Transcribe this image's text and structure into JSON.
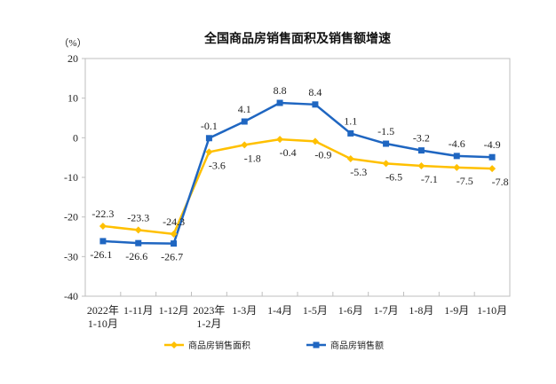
{
  "chart_data": {
    "type": "line",
    "title": "全国商品房销售面积及销售额增速",
    "ylabel": "（%）",
    "xlabel": "",
    "ylim": [
      -40,
      20
    ],
    "yticks": [
      20,
      10,
      0,
      -10,
      -20,
      -30,
      -40
    ],
    "grid": false,
    "legend_position": "bottom",
    "categories": [
      [
        "2022年",
        "1-10月"
      ],
      [
        "1-11月"
      ],
      [
        "1-12月"
      ],
      [
        "2023年",
        "1-2月"
      ],
      [
        "1-3月"
      ],
      [
        "1-4月"
      ],
      [
        "1-5月"
      ],
      [
        "1-6月"
      ],
      [
        "1-7月"
      ],
      [
        "1-8月"
      ],
      [
        "1-9月"
      ],
      [
        "1-10月"
      ]
    ],
    "series": [
      {
        "name": "商品房销售面积",
        "color": "#FFC000",
        "marker": "diamond",
        "values": [
          -22.3,
          -23.3,
          -24.3,
          -3.6,
          -1.8,
          -0.4,
          -0.9,
          -5.3,
          -6.5,
          -7.1,
          -7.5,
          -7.8
        ]
      },
      {
        "name": "商品房销售额",
        "color": "#1F66C1",
        "marker": "square",
        "values": [
          -26.1,
          -26.6,
          -26.7,
          -0.1,
          4.1,
          8.8,
          8.4,
          1.1,
          -1.5,
          -3.2,
          -4.6,
          -4.9
        ]
      }
    ]
  }
}
